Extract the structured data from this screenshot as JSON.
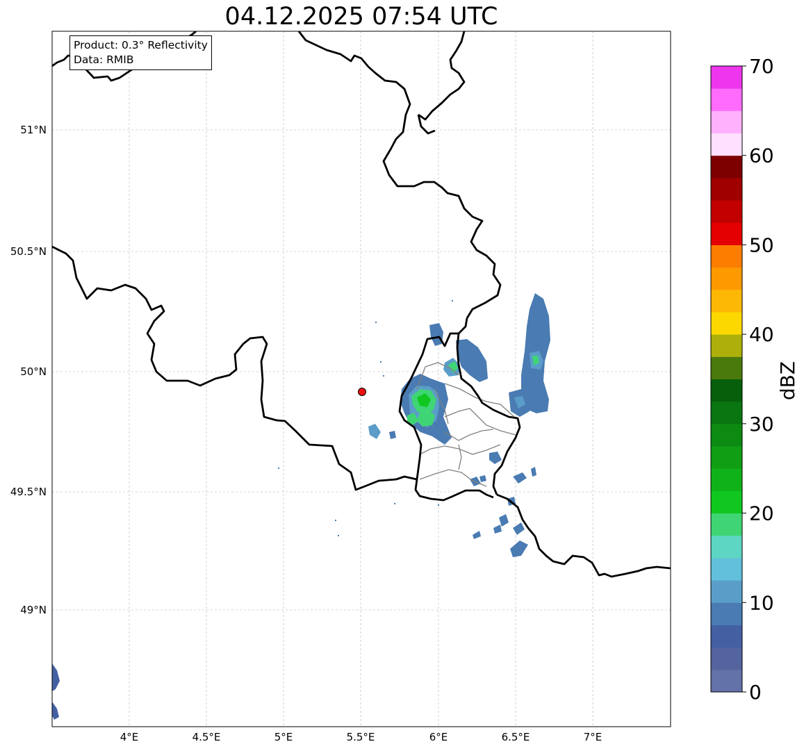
{
  "title": "04.12.2025 07:54 UTC",
  "info": {
    "product": "Product: 0.3° Reflectivity",
    "data": "Data: RMIB"
  },
  "x_ticks": [
    "4°E",
    "4.5°E",
    "5°E",
    "5.5°E",
    "6°E",
    "6.5°E",
    "7°E"
  ],
  "y_ticks": [
    "51°N",
    "50.5°N",
    "50°N",
    "49.5°N",
    "49°N"
  ],
  "colorbar": {
    "unit": "dBZ",
    "tick_labels": [
      "0",
      "10",
      "20",
      "30",
      "40",
      "50",
      "60",
      "70"
    ],
    "colors": [
      "#6372a8",
      "#54649e",
      "#4460a3",
      "#4a7bb2",
      "#5b9dc9",
      "#62c0dc",
      "#5dd6c4",
      "#3fd574",
      "#10c720",
      "#10b219",
      "#109e14",
      "#0d8a12",
      "#0a7612",
      "#075f0c",
      "#4a7a0c",
      "#adb00a",
      "#fdd800",
      "#fdb805",
      "#fd9a00",
      "#fd7d00",
      "#e40000",
      "#c20000",
      "#a00000",
      "#7c0000",
      "#ffe0fe",
      "#ffb1fd",
      "#ff6cfd",
      "#ed36ed"
    ]
  },
  "radar_marker": {
    "lon": 5.5,
    "lat": 49.92
  }
}
